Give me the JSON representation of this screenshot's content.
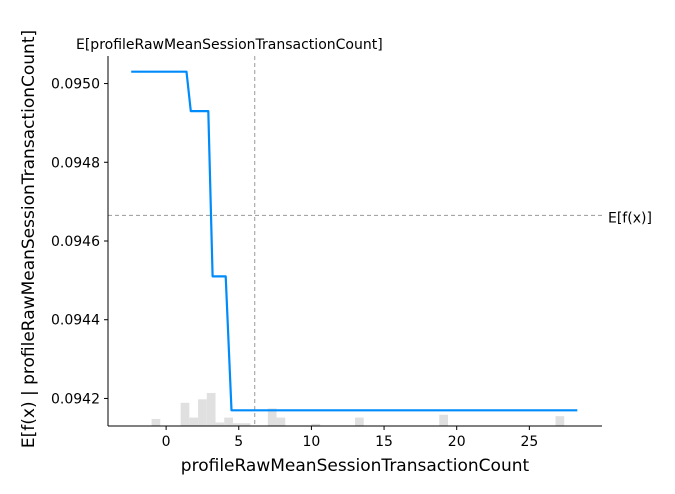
{
  "chart_data": {
    "type": "line",
    "title": "",
    "xlabel": "profileRawMeanSessionTransactionCount",
    "ylabel": "E[f(x) | profileRawMeanSessionTransactionCount]",
    "xlim": [
      -4,
      30
    ],
    "ylim": [
      0.09413,
      0.09507
    ],
    "xticks": [
      0,
      5,
      10,
      15,
      20,
      25
    ],
    "yticks": [
      0.0942,
      0.0944,
      0.0946,
      0.0948,
      0.095
    ],
    "ytick_labels": [
      "0.0942",
      "0.0944",
      "0.0946",
      "0.0948",
      "0.0950"
    ],
    "grid": false,
    "line_color": "#008bfb",
    "histogram_color": "#e0e0e0",
    "series": [
      {
        "x": [
          -2.4,
          1.4,
          1.7,
          2.9,
          3.2,
          4.1,
          4.5,
          28.3
        ],
        "y": [
          0.09503,
          0.09503,
          0.09493,
          0.09493,
          0.09451,
          0.09451,
          0.09417,
          0.09417
        ]
      }
    ],
    "histogram": {
      "bin_width": 0.6,
      "bins": [
        {
          "x": -1.0,
          "h": 0.1
        },
        {
          "x": 1.0,
          "h": 0.33
        },
        {
          "x": 1.6,
          "h": 0.12
        },
        {
          "x": 2.2,
          "h": 0.38
        },
        {
          "x": 2.8,
          "h": 0.47
        },
        {
          "x": 3.4,
          "h": 0.05
        },
        {
          "x": 4.0,
          "h": 0.12
        },
        {
          "x": 4.6,
          "h": 0.04
        },
        {
          "x": 5.2,
          "h": 0.04
        },
        {
          "x": 7.0,
          "h": 0.25
        },
        {
          "x": 7.6,
          "h": 0.12
        },
        {
          "x": 10.0,
          "h": 0.03
        },
        {
          "x": 13.0,
          "h": 0.12
        },
        {
          "x": 18.8,
          "h": 0.16
        },
        {
          "x": 26.8,
          "h": 0.14
        }
      ]
    },
    "reference_lines": {
      "vertical": {
        "x": 6.1,
        "label": "E[profileRawMeanSessionTransactionCount]"
      },
      "horizontal": {
        "y": 0.094665,
        "label": "E[f(x)]"
      }
    }
  }
}
